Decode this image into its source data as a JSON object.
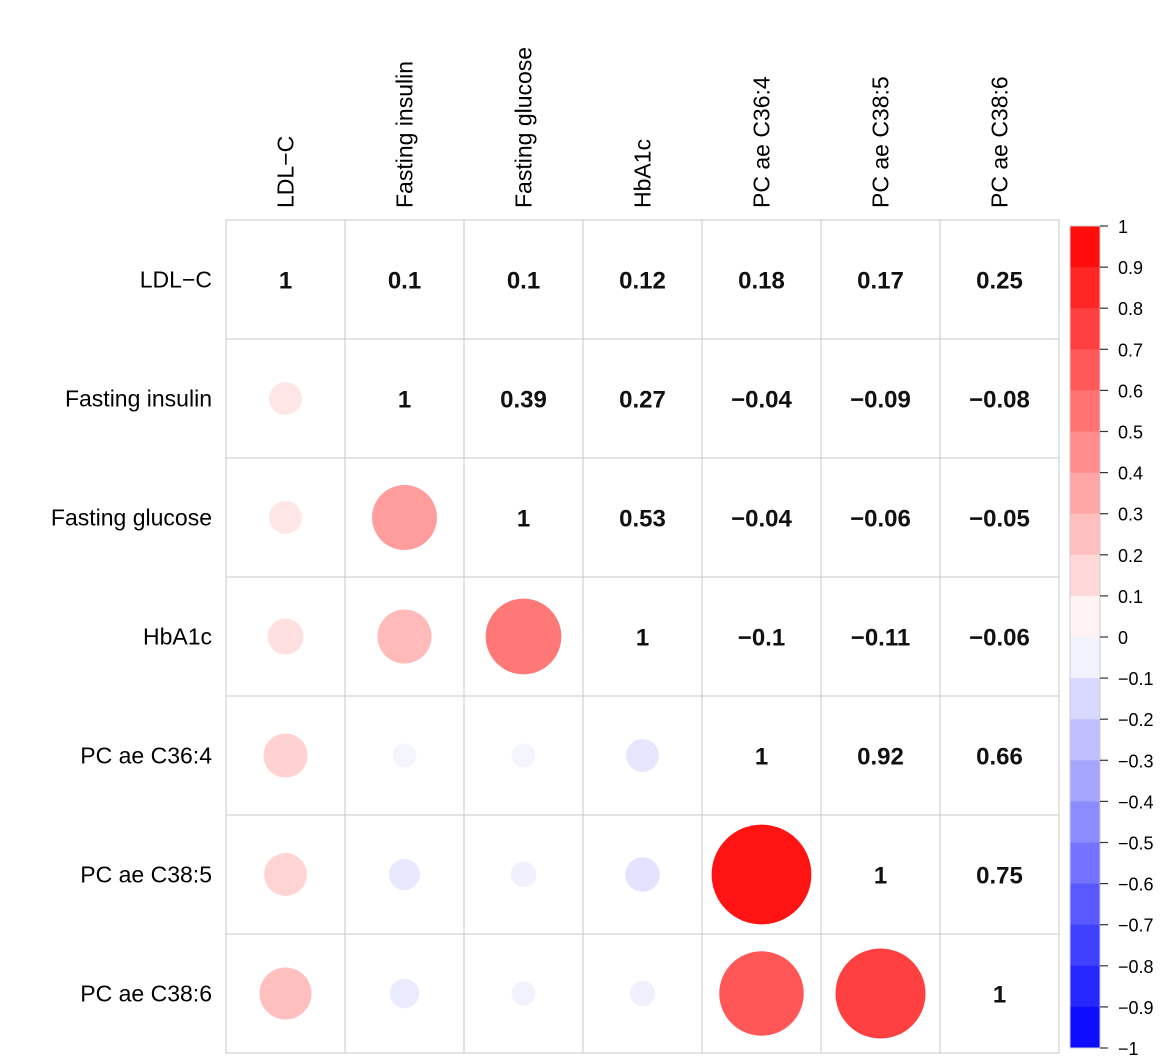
{
  "chart_data": {
    "type": "heatmap",
    "variables": [
      "LDL−C",
      "Fasting insulin",
      "Fasting glucose",
      "HbA1c",
      "PC ae C36:4",
      "PC ae C38:5",
      "PC ae C38:6"
    ],
    "matrix": [
      [
        1,
        0.1,
        0.1,
        0.12,
        0.18,
        0.17,
        0.25
      ],
      [
        0.1,
        1,
        0.39,
        0.27,
        -0.04,
        -0.09,
        -0.08
      ],
      [
        0.1,
        0.39,
        1,
        0.53,
        -0.04,
        -0.06,
        -0.05
      ],
      [
        0.12,
        0.27,
        0.53,
        1,
        -0.1,
        -0.11,
        -0.06
      ],
      [
        0.18,
        -0.04,
        -0.04,
        -0.1,
        1,
        0.92,
        0.66
      ],
      [
        0.17,
        -0.09,
        -0.06,
        -0.11,
        0.92,
        1,
        0.75
      ],
      [
        0.25,
        -0.08,
        -0.05,
        -0.06,
        0.66,
        0.75,
        1
      ]
    ],
    "value_labels": [
      [
        "1",
        "0.1",
        "0.1",
        "0.12",
        "0.18",
        "0.17",
        "0.25"
      ],
      [
        "",
        "1",
        "0.39",
        "0.27",
        "−0.04",
        "−0.09",
        "−0.08"
      ],
      [
        "",
        "",
        "1",
        "0.53",
        "−0.04",
        "−0.06",
        "−0.05"
      ],
      [
        "",
        "",
        "",
        "1",
        "−0.1",
        "−0.11",
        "−0.06"
      ],
      [
        "",
        "",
        "",
        "",
        "1",
        "0.92",
        "0.66"
      ],
      [
        "",
        "",
        "",
        "",
        "",
        "1",
        "0.75"
      ],
      [
        "",
        "",
        "",
        "",
        "",
        "",
        "1"
      ]
    ],
    "upper_triangle": "numbers",
    "lower_triangle": "circles",
    "colorbar": {
      "range": [
        -1,
        1
      ],
      "ticks": [
        "1",
        "0.9",
        "0.8",
        "0.7",
        "0.6",
        "0.5",
        "0.4",
        "0.3",
        "0.2",
        "0.1",
        "0",
        "−0.1",
        "−0.2",
        "−0.3",
        "−0.4",
        "−0.5",
        "−0.6",
        "−0.7",
        "−0.8",
        "−0.9",
        "−1"
      ],
      "color_positive": "#ff0000",
      "color_negative": "#0000ff",
      "color_zero": "#ffffff"
    },
    "grid": true
  }
}
